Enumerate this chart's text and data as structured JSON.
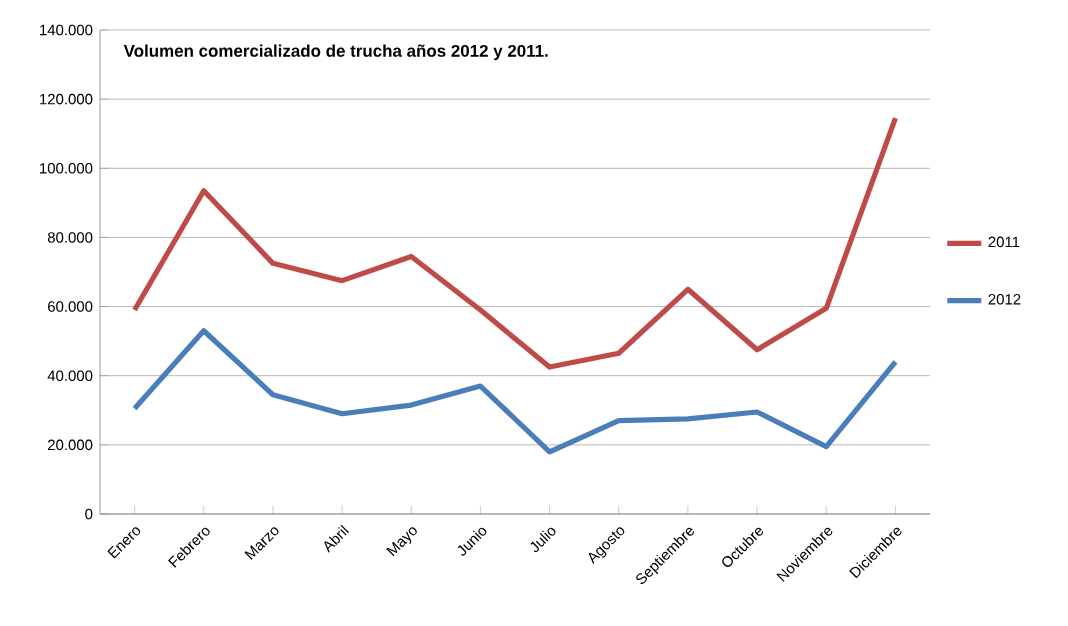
{
  "chart_data": {
    "type": "line",
    "title": "Volumen comercializado de trucha años 2012 y 2011.",
    "categories": [
      "Enero",
      "Febrero",
      "Marzo",
      "Abril",
      "Mayo",
      "Junio",
      "Julio",
      "Agosto",
      "Septiembre",
      "Octubre",
      "Noviembre",
      "Diciembre"
    ],
    "series": [
      {
        "name": "2011",
        "color": "#be4b48",
        "values": [
          59000,
          93500,
          72500,
          67500,
          74500,
          59000,
          42500,
          46500,
          65000,
          47500,
          59500,
          114500
        ]
      },
      {
        "name": "2012",
        "color": "#4a7ebb",
        "values": [
          30500,
          53000,
          34500,
          29000,
          31500,
          37000,
          18000,
          27000,
          27500,
          29500,
          19500,
          44000
        ]
      }
    ],
    "ylim": [
      0,
      140000
    ],
    "yticks": [
      0,
      {
        "value": 20000,
        "label": "20.000"
      },
      {
        "value": 40000,
        "label": "40.000"
      },
      {
        "value": 60000,
        "label": "60.000"
      },
      {
        "value": 80000,
        "label": "80.000"
      },
      {
        "value": 100000,
        "label": "100.000"
      },
      {
        "value": 120000,
        "label": "120.000"
      },
      {
        "value": 140000,
        "label": "140.000"
      }
    ],
    "grid": "y",
    "legend": "right",
    "marker": "none",
    "line_style": "solid"
  }
}
